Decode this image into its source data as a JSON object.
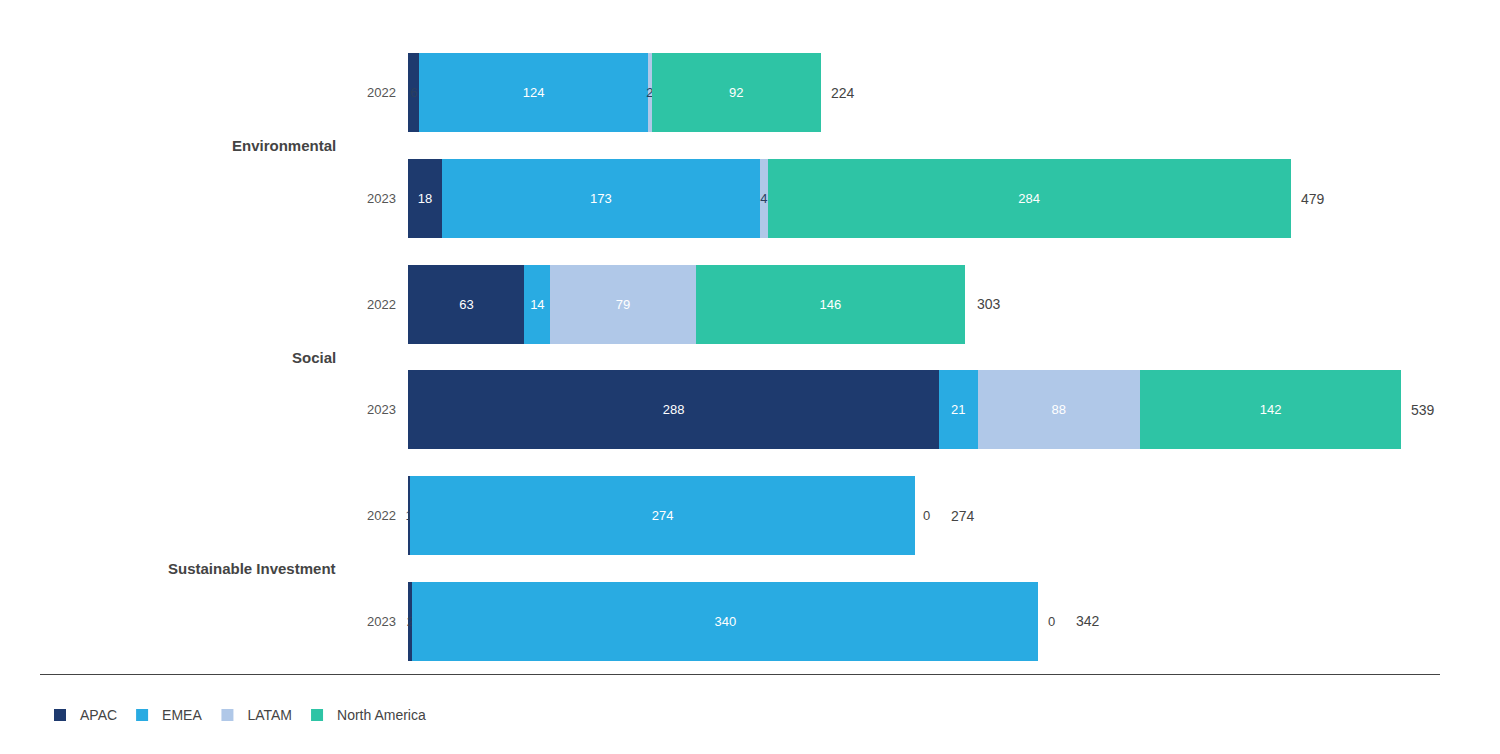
{
  "chart_data": {
    "type": "bar",
    "orientation": "horizontal",
    "stacked": true,
    "data_labels": true,
    "tick_labels": false,
    "grid": false,
    "legend": "bottom",
    "categories": [
      "2022",
      "2023",
      "2022",
      "2023",
      "2022",
      "2023"
    ],
    "groups": [
      "Environmental",
      "Environmental",
      "Social",
      "Social",
      "Sustainable Investment",
      "Sustainable Investment"
    ],
    "series": [
      {
        "name": "APAC",
        "color": "#1e3a6e",
        "values": [
          6,
          18,
          63,
          288,
          1,
          2
        ]
      },
      {
        "name": "EMEA",
        "color": "#29abe2",
        "values": [
          124,
          173,
          14,
          21,
          274,
          340
        ]
      },
      {
        "name": "LATAM",
        "color": "#b0c8e8",
        "values": [
          2,
          4,
          79,
          88,
          0,
          0
        ]
      },
      {
        "name": "North America",
        "color": "#2ec4a5",
        "values": [
          92,
          284,
          146,
          142,
          0,
          0
        ],
        "value_labels": [
          "92",
          "284",
          "146",
          "142",
          null,
          null
        ]
      }
    ],
    "totals": [
      224,
      479,
      303,
      539,
      274,
      342
    ],
    "xlim": [
      -200,
      560
    ]
  }
}
